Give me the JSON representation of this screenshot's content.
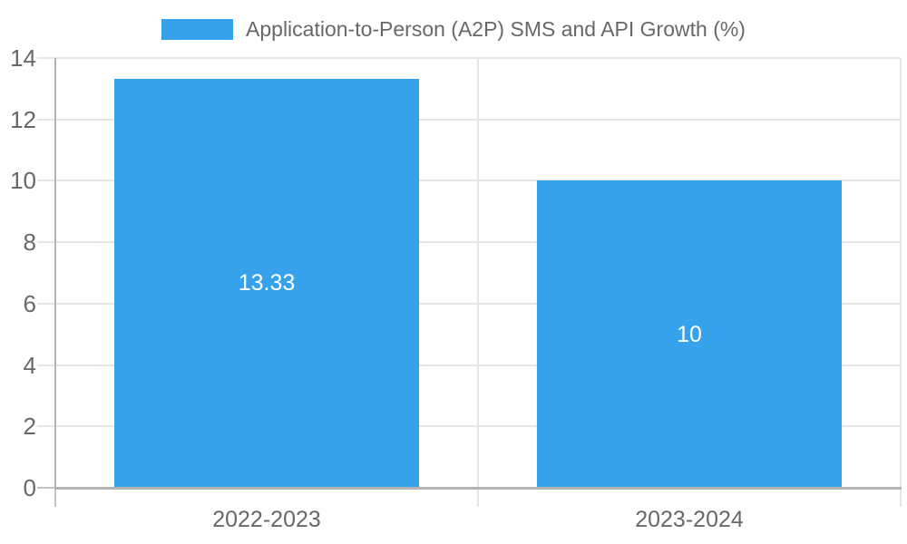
{
  "chart_data": {
    "type": "bar",
    "title": "",
    "legend_label": "Application-to-Person (A2P) SMS and API Growth (%)",
    "legend_position": "top",
    "categories": [
      "2022-2023",
      "2023-2024"
    ],
    "series": [
      {
        "name": "Application-to-Person (A2P) SMS and API Growth (%)",
        "values": [
          13.33,
          10
        ]
      }
    ],
    "value_labels": [
      "13.33",
      "10"
    ],
    "xlabel": "",
    "ylabel": "",
    "ylim": [
      0,
      14
    ],
    "yticks": [
      0,
      2,
      4,
      6,
      8,
      10,
      12,
      14
    ],
    "grid": true,
    "colors": {
      "bar": "#36A2EB",
      "value_label": "#ffffff",
      "text": "#686868",
      "grid": "#e6e6e6",
      "axis": "#b3b3b3",
      "axis_tick": "#c2c2c2",
      "background": "#ffffff"
    }
  }
}
